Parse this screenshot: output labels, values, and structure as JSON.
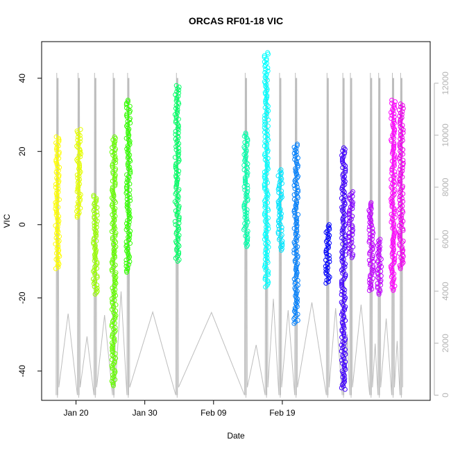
{
  "chart_data": {
    "type": "scatter",
    "title": "ORCAS RF01-18 VIC",
    "xlabel": "Date",
    "ylabel": "VIC",
    "x_ticks": [
      "Jan 20",
      "Jan 30",
      "Feb 09",
      "Feb 19"
    ],
    "x_range_days": [
      5.5,
      51.5
    ],
    "x_tick_days": [
      10,
      20,
      30,
      40
    ],
    "y_ticks": [
      -40,
      -20,
      0,
      20,
      40
    ],
    "ylim": [
      -48,
      50
    ],
    "y2_ticks": [
      0,
      2000,
      4000,
      6000,
      8000,
      10000,
      12000
    ],
    "y2lim": [
      -200,
      13600
    ],
    "y2_color": "#b3b3b3",
    "grid": false,
    "flights": [
      {
        "day": 7.3,
        "ymin": -12,
        "ymax": 24,
        "color": "#ffff00"
      },
      {
        "day": 10.4,
        "ymin": 2,
        "ymax": 26,
        "color": "#e6ff00"
      },
      {
        "day": 12.8,
        "ymin": -19,
        "ymax": 8,
        "color": "#99ff00"
      },
      {
        "day": 15.5,
        "ymin": -44,
        "ymax": 24,
        "color": "#66ff00"
      },
      {
        "day": 17.6,
        "ymin": -13,
        "ymax": 34,
        "color": "#33ff00"
      },
      {
        "day": 24.7,
        "ymin": -10,
        "ymax": 38,
        "color": "#00ff66"
      },
      {
        "day": 34.7,
        "ymin": -6,
        "ymax": 25,
        "color": "#00ffaa"
      },
      {
        "day": 37.7,
        "ymin": -17,
        "ymax": 47,
        "color": "#00ffff"
      },
      {
        "day": 39.7,
        "ymin": -7,
        "ymax": 15,
        "color": "#00e6ff"
      },
      {
        "day": 42.0,
        "ymin": -27,
        "ymax": 22,
        "color": "#0080ff"
      },
      {
        "day": 46.6,
        "ymin": -16,
        "ymax": 0,
        "color": "#0000ff"
      },
      {
        "day": 48.9,
        "ymin": -45,
        "ymax": 21,
        "color": "#4000ff"
      },
      {
        "day": 50.0,
        "ymin": -9,
        "ymax": 9,
        "color": "#8000ff"
      },
      {
        "day": 52.9,
        "ymin": -18,
        "ymax": 6,
        "color": "#c000ff"
      },
      {
        "day": 54.1,
        "ymin": -19,
        "ymax": -4,
        "color": "#c000ff"
      },
      {
        "day": 56.1,
        "ymin": -18,
        "ymax": 34,
        "color": "#ff00ff"
      },
      {
        "day": 57.3,
        "ymin": -12,
        "ymax": 33,
        "color": "#ee00ee"
      }
    ]
  }
}
